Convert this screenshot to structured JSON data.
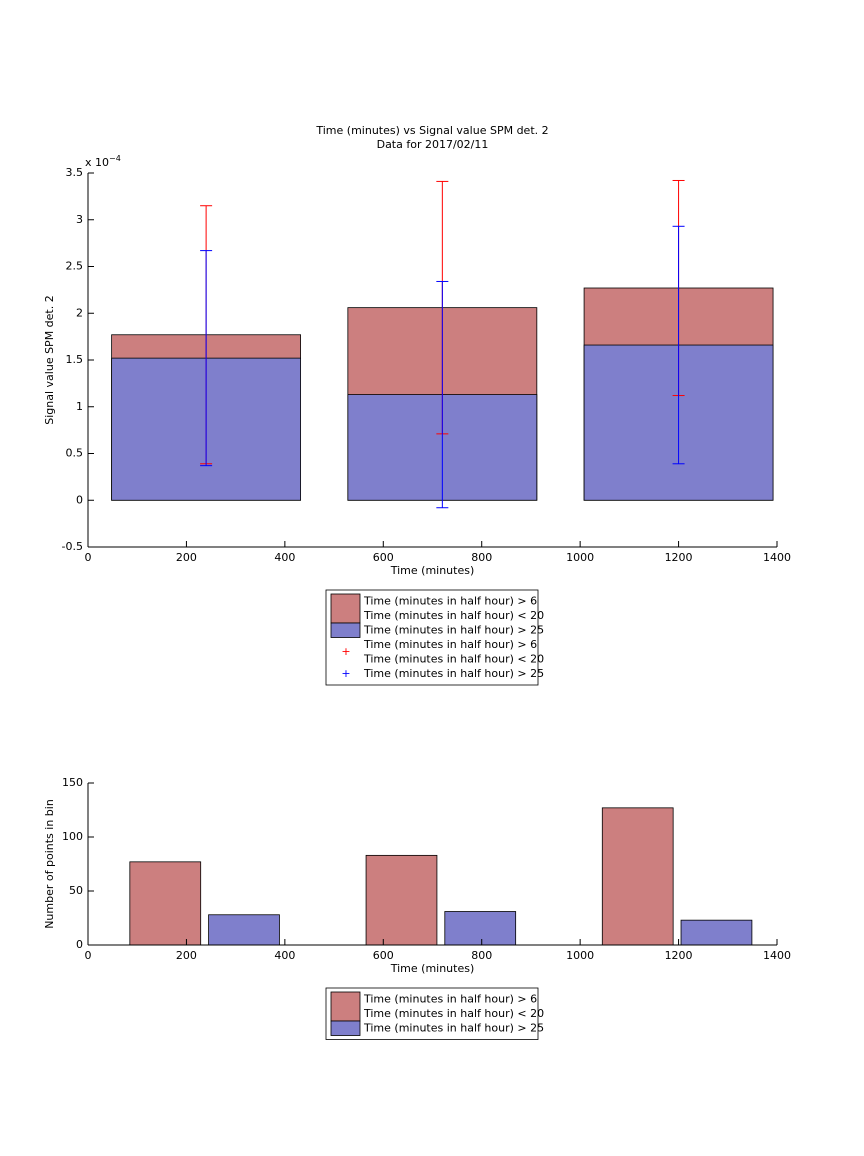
{
  "chart_data": [
    {
      "type": "bar",
      "title": [
        "Time (minutes) vs Signal value SPM det. 2",
        "Data for 2017/02/11"
      ],
      "xlabel": "Time (minutes)",
      "ylabel": "Signal value SPM det. 2",
      "y_multiplier": "x 10",
      "y_exponent": "−4",
      "xlim": [
        0,
        1400
      ],
      "xticks": [
        0,
        200,
        400,
        600,
        800,
        1000,
        1200,
        1400
      ],
      "ylim": [
        -0.5,
        3.5
      ],
      "yticks": [
        -0.5,
        0,
        0.5,
        1,
        1.5,
        2,
        2.5,
        3,
        3.5
      ],
      "series": [
        {
          "name": [
            "Time (minutes in half hour) > 6",
            "Time (minutes in half hour) < 20"
          ],
          "color": "#cc7f7f",
          "error_color": "#ff0000",
          "x": [
            240,
            720,
            1200
          ],
          "values": [
            1.77,
            2.06,
            2.27
          ],
          "errors": [
            1.38,
            1.35,
            1.15
          ]
        },
        {
          "name": [
            "Time (minutes in half hour) > 25"
          ],
          "color": "#7f7fcc",
          "error_color": "#0000ff",
          "x": [
            240,
            720,
            1200
          ],
          "values": [
            1.52,
            1.13,
            1.66
          ],
          "errors": [
            1.15,
            1.21,
            1.27
          ]
        }
      ]
    },
    {
      "type": "bar",
      "xlabel": "Time (minutes)",
      "ylabel": "Number of points in bin",
      "xlim": [
        0,
        1400
      ],
      "xticks": [
        0,
        200,
        400,
        600,
        800,
        1000,
        1200,
        1400
      ],
      "ylim": [
        0,
        150
      ],
      "yticks": [
        0,
        50,
        100,
        150
      ],
      "series": [
        {
          "name": [
            "Time (minutes in half hour) > 6",
            "Time (minutes in half hour) < 20"
          ],
          "color": "#cc7f7f",
          "x": [
            157,
            637,
            1117
          ],
          "values": [
            77,
            83,
            127
          ]
        },
        {
          "name": [
            "Time (minutes in half hour) > 25"
          ],
          "color": "#7f7fcc",
          "x": [
            317,
            797,
            1277
          ],
          "values": [
            28,
            31,
            23
          ]
        }
      ]
    }
  ]
}
